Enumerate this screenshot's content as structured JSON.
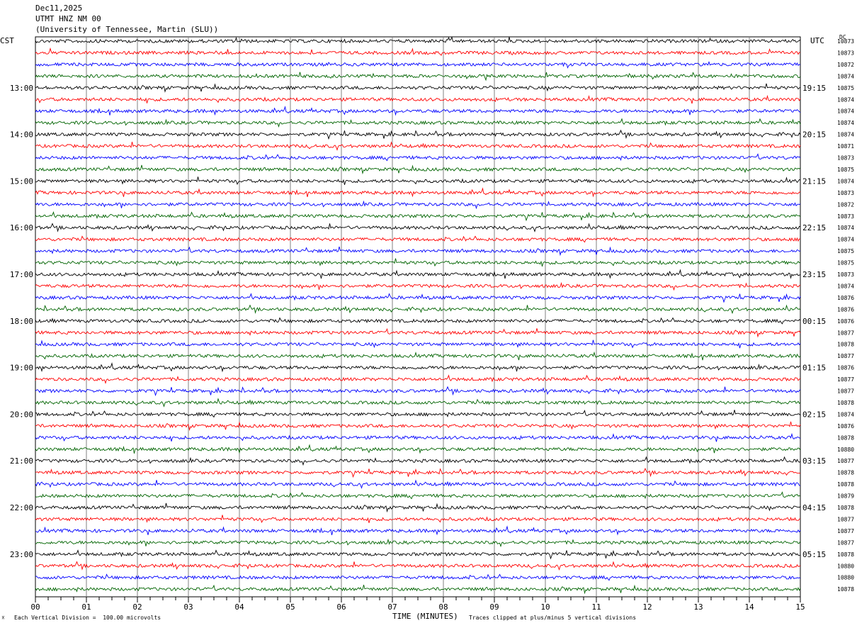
{
  "header": {
    "date": "Dec11,2025",
    "station": "UTMT HNZ NM 00",
    "network": "(University of Tennessee, Martin (SLU))"
  },
  "left_tz": "CST",
  "right_tz": "UTC",
  "dc_label": "DC",
  "footer": {
    "scale": "Each Vertical Division =  100.00 microvolts",
    "clip": "Traces clipped at plus/minus 5 vertical divisions",
    "logo": "☓"
  },
  "chart_data": {
    "type": "line",
    "title": "",
    "xlabel": "TIME (MINUTES)",
    "ylabel": "",
    "xlim": [
      0,
      15
    ],
    "x_ticks": [
      "00",
      "01",
      "02",
      "03",
      "04",
      "05",
      "06",
      "07",
      "08",
      "09",
      "10",
      "11",
      "12",
      "13",
      "14",
      "15"
    ],
    "trace_count": 48,
    "trace_colors": [
      "#000000",
      "#ff0000",
      "#0000ff",
      "#006400"
    ],
    "grid": "vertical lines at each minute",
    "left_hour_labels": [
      "13:00",
      "14:00",
      "15:00",
      "16:00",
      "17:00",
      "18:00",
      "19:00",
      "20:00",
      "21:00",
      "22:00",
      "23:00"
    ],
    "right_hour_labels": [
      "19:15",
      "20:15",
      "21:15",
      "22:15",
      "23:15",
      "00:15",
      "01:15",
      "02:15",
      "03:15",
      "04:15",
      "05:15"
    ],
    "dc_offsets": [
      10873,
      10873,
      10872,
      10874,
      10875,
      10874,
      10874,
      10874,
      10874,
      10871,
      10873,
      10875,
      10874,
      10873,
      10872,
      10873,
      10874,
      10874,
      10875,
      10875,
      10873,
      10874,
      10876,
      10876,
      10876,
      10877,
      10878,
      10877,
      10876,
      10877,
      10877,
      10878,
      10874,
      10876,
      10878,
      10880,
      10877,
      10878,
      10878,
      10879,
      10878,
      10877,
      10877,
      10877,
      10878,
      10880,
      10880,
      10878
    ]
  }
}
